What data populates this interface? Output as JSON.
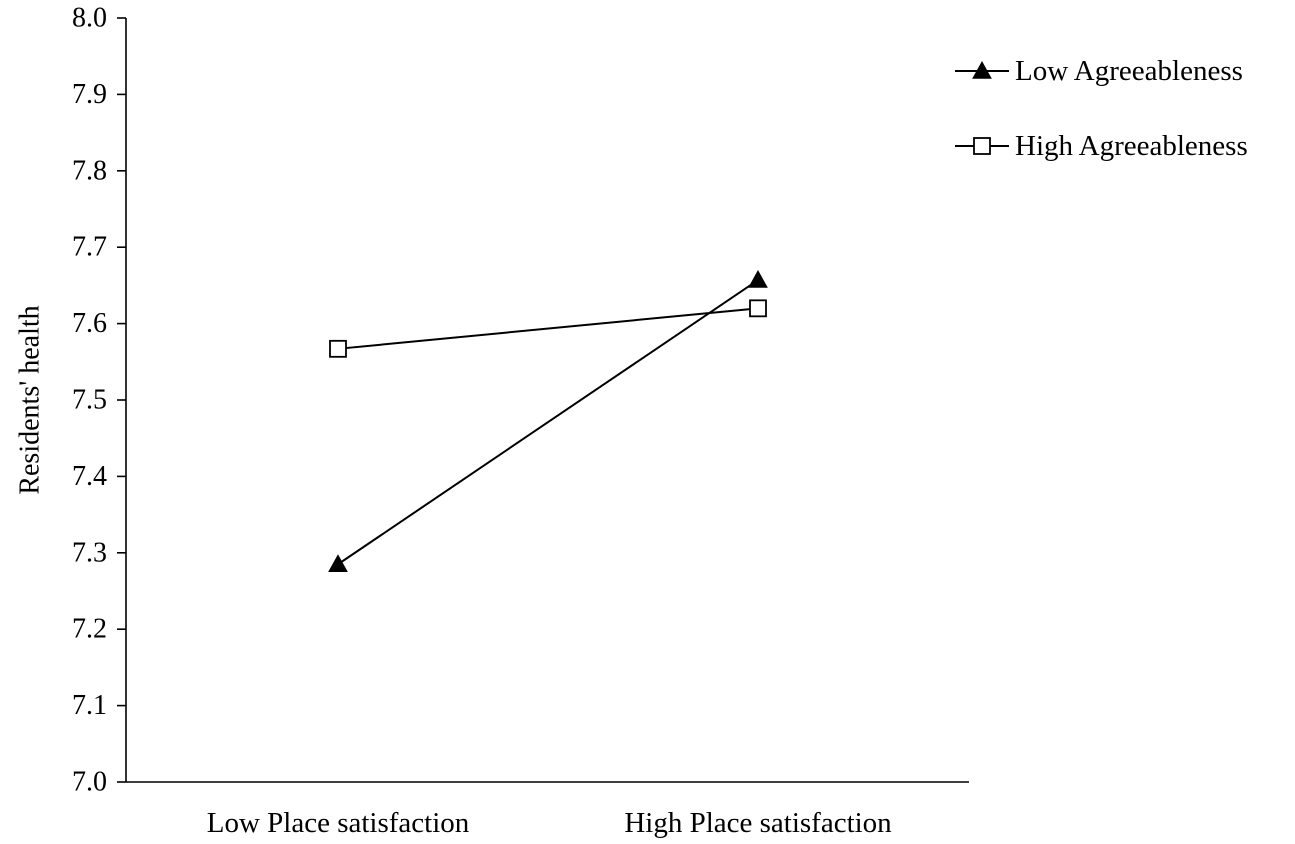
{
  "chart_data": {
    "type": "line",
    "title": "",
    "xlabel": "",
    "ylabel": "Residents' health",
    "categories": [
      "Low Place satisfaction",
      "High Place satisfaction"
    ],
    "ylim": [
      7.0,
      8.0
    ],
    "yticks": [
      "7.0",
      "7.1",
      "7.2",
      "7.3",
      "7.4",
      "7.5",
      "7.6",
      "7.7",
      "7.8",
      "7.9",
      "8.0"
    ],
    "grid": false,
    "legend_position": "top-right",
    "series": [
      {
        "name": "Low Agreeableness",
        "marker": "filled-triangle",
        "color": "#000000",
        "values": [
          7.285,
          7.657
        ]
      },
      {
        "name": "High Agreeableness",
        "marker": "open-square",
        "color": "#000000",
        "values": [
          7.567,
          7.62
        ]
      }
    ]
  }
}
